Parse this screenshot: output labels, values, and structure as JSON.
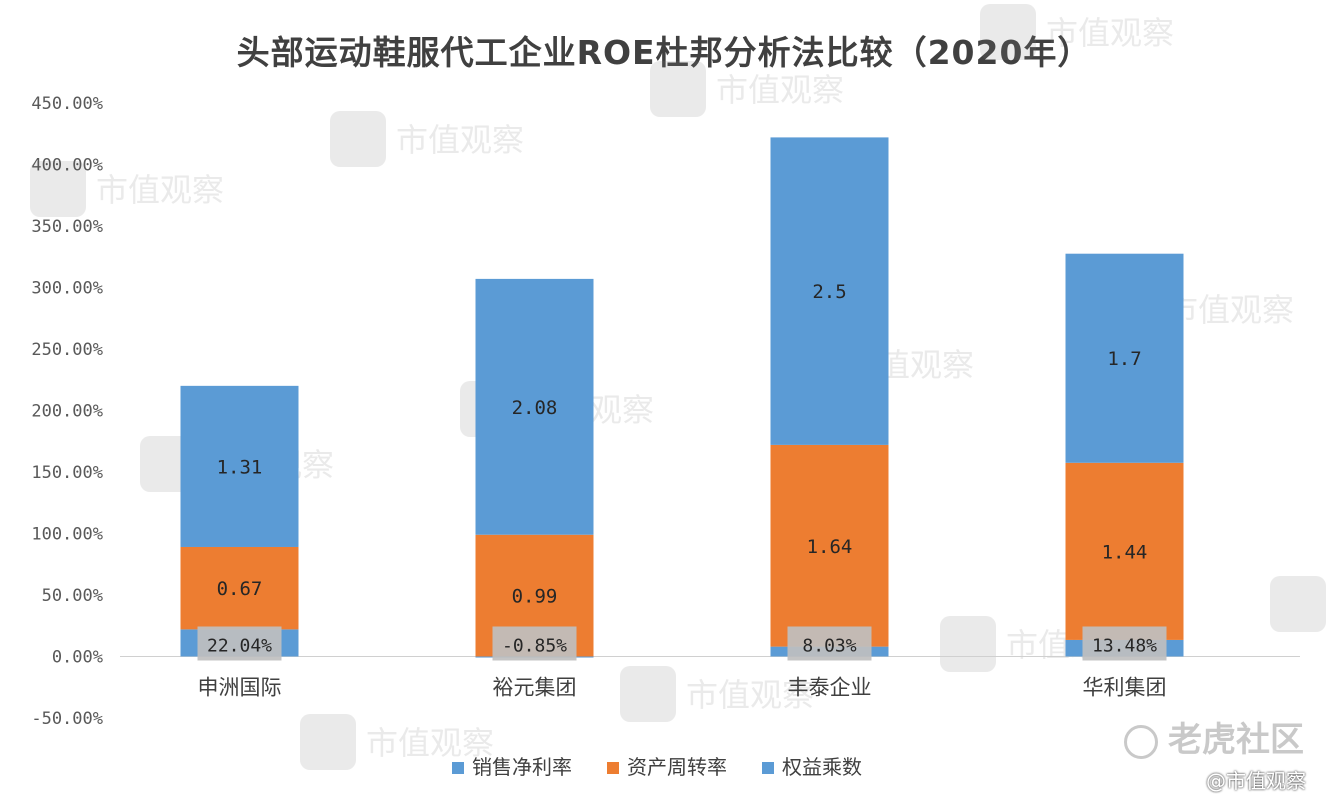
{
  "chart_data": {
    "type": "bar",
    "stacked": true,
    "title": "头部运动鞋服代工企业ROE杜邦分析法比较（2020年）",
    "categories": [
      "申洲国际",
      "裕元集团",
      "丰泰企业",
      "华利集团"
    ],
    "ylim": [
      -0.5,
      4.5
    ],
    "yticks": [
      "-50.00%",
      "0.00%",
      "50.00%",
      "100.00%",
      "150.00%",
      "200.00%",
      "250.00%",
      "300.00%",
      "350.00%",
      "400.00%",
      "450.00%"
    ],
    "legend_position": "bottom",
    "grid": false,
    "series": [
      {
        "name": "销售净利率",
        "color": "#5b9bd5",
        "values": [
          0.2204,
          -0.0085,
          0.0803,
          0.1348
        ],
        "labels": [
          "22.04%",
          "-0.85%",
          "8.03%",
          "13.48%"
        ]
      },
      {
        "name": "资产周转率",
        "color": "#ed7d31",
        "values": [
          0.67,
          0.99,
          1.64,
          1.44
        ],
        "labels": [
          "0.67",
          "0.99",
          "1.64",
          "1.44"
        ]
      },
      {
        "name": "权益乘数",
        "color": "#5b9bd5",
        "values": [
          1.31,
          2.08,
          2.5,
          1.7
        ],
        "labels": [
          "1.31",
          "2.08",
          "2.5",
          "1.7"
        ]
      }
    ]
  },
  "watermark": {
    "brand": "市值观察",
    "forum": "老虎社区",
    "credit": "@市值观察"
  }
}
